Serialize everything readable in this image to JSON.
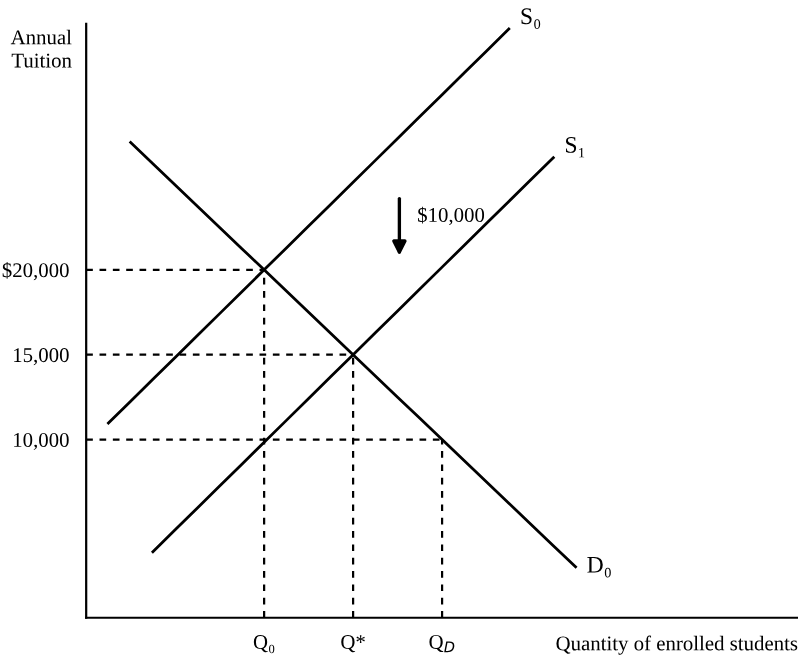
{
  "chart_data": {
    "type": "line",
    "xlabel": "Quantity of enrolled students",
    "ylabel": "Annual\nTuition",
    "categories": [
      null,
      null,
      null,
      null,
      null,
      null,
      null,
      null,
      "Q₀",
      null,
      null,
      null,
      "Q*",
      null,
      null,
      null,
      "Q$_{D}$",
      null,
      null,
      null,
      null,
      null,
      null,
      null,
      null,
      null,
      null,
      null,
      null,
      null,
      null,
      null,
      null
    ],
    "ylim": [
      -500,
      34500
    ],
    "yticks": [
      {
        "value": 10000,
        "label": "10,000"
      },
      {
        "value": 15000,
        "label": "15,000"
      },
      {
        "value": 20000,
        "label": "$20,000"
      }
    ],
    "marker": "none",
    "series": [
      {
        "name": "S₀",
        "color": "#000000",
        "values": [
          null,
          10970,
          12260,
          13550,
          14840,
          16130,
          17420,
          18710,
          20000,
          21290,
          22580,
          23870,
          25160,
          26450,
          27740,
          29030,
          30320,
          31610,
          32900,
          34190,
          null,
          null,
          null,
          null,
          null,
          null,
          null,
          null,
          null,
          null,
          null,
          null,
          null
        ]
      },
      {
        "name": "S₁",
        "color": "#000000",
        "values": [
          null,
          null,
          null,
          3390,
          4680,
          5970,
          7260,
          8550,
          9840,
          11130,
          12420,
          13710,
          15000,
          16290,
          17580,
          18870,
          20160,
          21450,
          22740,
          24030,
          25320,
          26610,
          null,
          null,
          null,
          null,
          null,
          null,
          null,
          null,
          null,
          null,
          null
        ]
      },
      {
        "name": "D₀",
        "color": "#000000",
        "values": [
          null,
          null,
          27500,
          26250,
          25000,
          23750,
          22500,
          21250,
          20000,
          18750,
          17500,
          16250,
          15000,
          13750,
          12500,
          11250,
          10000,
          8750,
          7500,
          6250,
          5000,
          3750,
          2500,
          null,
          null,
          null,
          null,
          null,
          null,
          null,
          null,
          null,
          null
        ]
      },
      {
        "color": "#000000",
        "line_style": "dashed",
        "values": [
          20000,
          20000,
          20000,
          20000,
          20000,
          20000,
          20000,
          20000,
          20000,
          null,
          null,
          null,
          null,
          null,
          null,
          null,
          null,
          null,
          null,
          null,
          null,
          null,
          null,
          null,
          null,
          null,
          null,
          null,
          null,
          null,
          null,
          null,
          null
        ],
        "errors": [
          null,
          null,
          null,
          null,
          null,
          null,
          null,
          null,
          [
            -500,
            20000
          ],
          null,
          null,
          null,
          null,
          null,
          null,
          null,
          null,
          null,
          null,
          null,
          null,
          null,
          null,
          null,
          null,
          null,
          null,
          null,
          null,
          null,
          null,
          null,
          null
        ]
      },
      {
        "color": "#000000",
        "line_style": "dashed",
        "values": [
          15000,
          15000,
          15000,
          15000,
          15000,
          15000,
          15000,
          15000,
          15000,
          15000,
          15000,
          15000,
          15000,
          null,
          null,
          null,
          null,
          null,
          null,
          null,
          null,
          null,
          null,
          null,
          null,
          null,
          null,
          null,
          null,
          null,
          null,
          null,
          null
        ],
        "errors": [
          null,
          null,
          null,
          null,
          null,
          null,
          null,
          null,
          null,
          null,
          null,
          null,
          [
            -500,
            15000
          ],
          null,
          null,
          null,
          null,
          null,
          null,
          null,
          null,
          null,
          null,
          null,
          null,
          null,
          null,
          null,
          null,
          null,
          null,
          null,
          null
        ]
      },
      {
        "color": "#000000",
        "line_style": "dashed",
        "values": [
          10000,
          10000,
          10000,
          10000,
          10000,
          10000,
          10000,
          10000,
          10000,
          10000,
          10000,
          10000,
          10000,
          10000,
          10000,
          10000,
          10000,
          null,
          null,
          null,
          null,
          null,
          null,
          null,
          null,
          null,
          null,
          null,
          null,
          null,
          null,
          null,
          null
        ],
        "errors": [
          null,
          null,
          null,
          null,
          null,
          null,
          null,
          null,
          null,
          null,
          null,
          null,
          null,
          null,
          null,
          null,
          [
            -500,
            10000
          ],
          null,
          null,
          null,
          null,
          null,
          null,
          null,
          null,
          null,
          null,
          null,
          null,
          null,
          null,
          null,
          null
        ]
      }
    ],
    "annotations": [
      "$10,000"
    ]
  }
}
